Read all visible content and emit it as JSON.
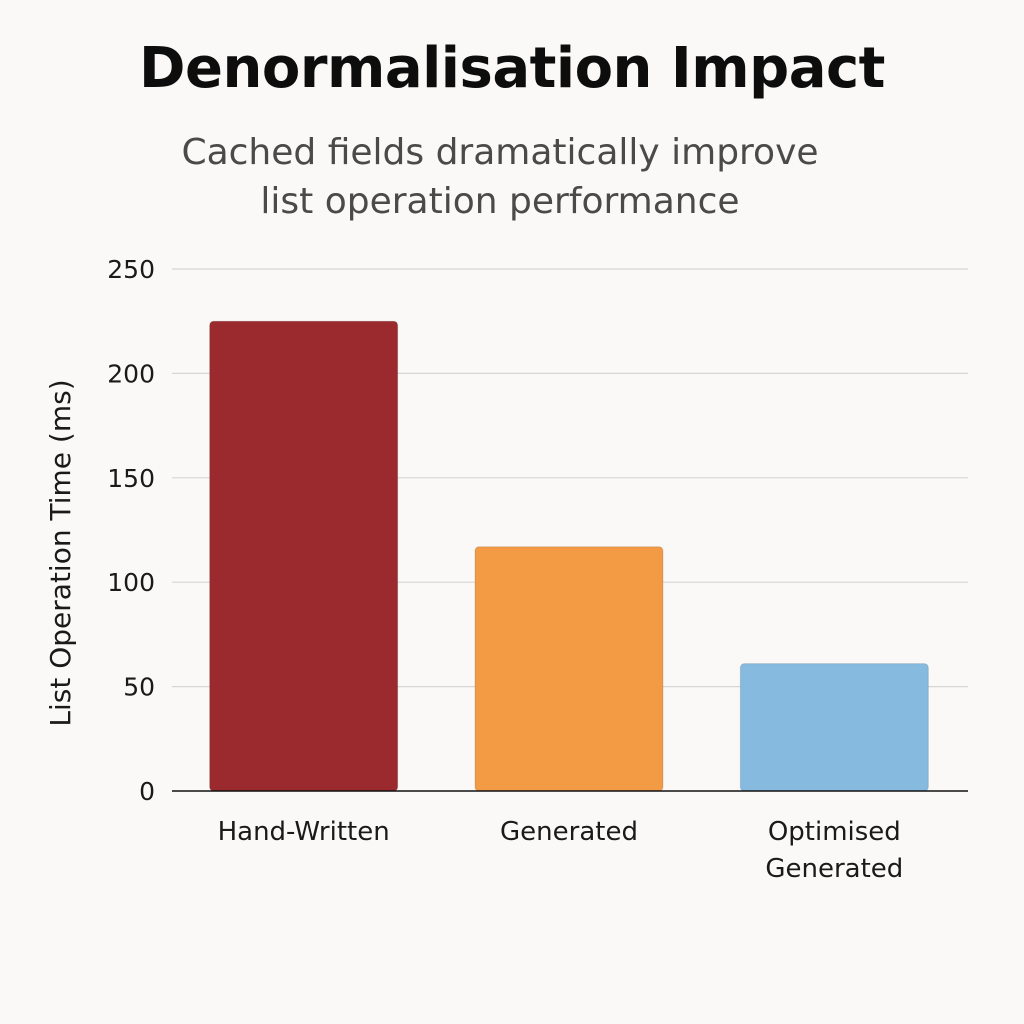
{
  "chart_data": {
    "type": "bar",
    "title": "Denormalisation Impact",
    "subtitle": "Cached fields dramatically improve list operation performance",
    "categories": [
      "Hand-Written",
      "Generated",
      "Optimised Generated"
    ],
    "category_lines": [
      [
        "Hand-Written"
      ],
      [
        "Generated"
      ],
      [
        "Optimised",
        "Generated"
      ]
    ],
    "values": [
      225,
      117,
      61
    ],
    "colors": [
      "#9b2a2e",
      "#f29b44",
      "#86bbdf"
    ],
    "xlabel": "",
    "ylabel": "List Operation Time (ms)",
    "ylim": [
      0,
      250
    ],
    "yticks": [
      0,
      50,
      100,
      150,
      200,
      250
    ],
    "grid": true,
    "legend": "none"
  }
}
